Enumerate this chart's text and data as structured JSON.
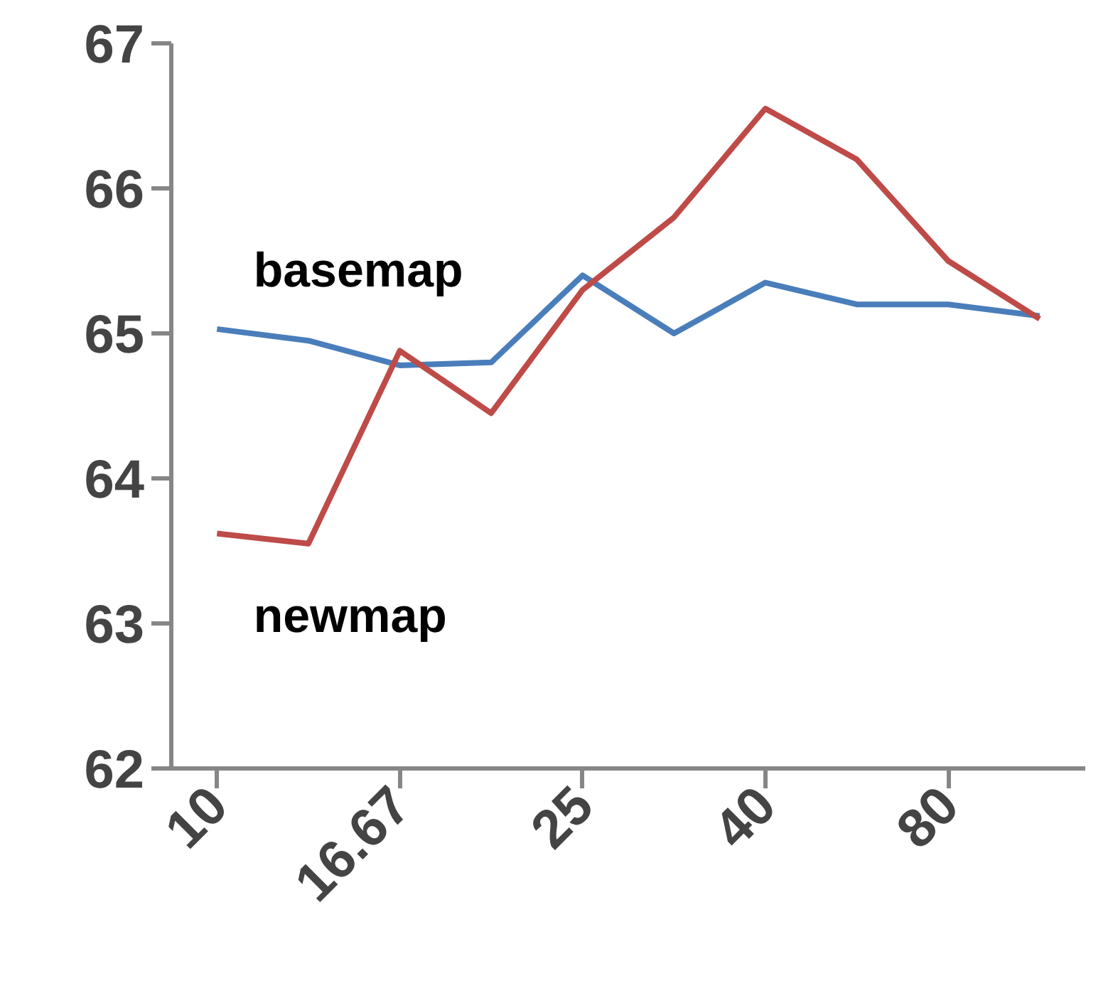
{
  "chart_data": {
    "type": "line",
    "categories": [
      "10",
      null,
      "16.67",
      null,
      "25",
      null,
      "40",
      null,
      "80",
      null
    ],
    "series": [
      {
        "name": "basemap",
        "color": "#4a7ebb",
        "values": [
          65.03,
          64.95,
          64.78,
          64.8,
          65.4,
          65.0,
          65.35,
          65.2,
          65.2,
          65.12
        ]
      },
      {
        "name": "newmap",
        "color": "#be4b48",
        "values": [
          63.62,
          63.55,
          64.88,
          64.45,
          65.3,
          65.8,
          66.55,
          66.2,
          65.5,
          65.1
        ]
      }
    ],
    "ylim": [
      62,
      67
    ],
    "yticks": [
      62,
      63,
      64,
      65,
      66,
      67
    ],
    "grid": false,
    "legend": false,
    "marker": "none",
    "line_style": "solid"
  }
}
